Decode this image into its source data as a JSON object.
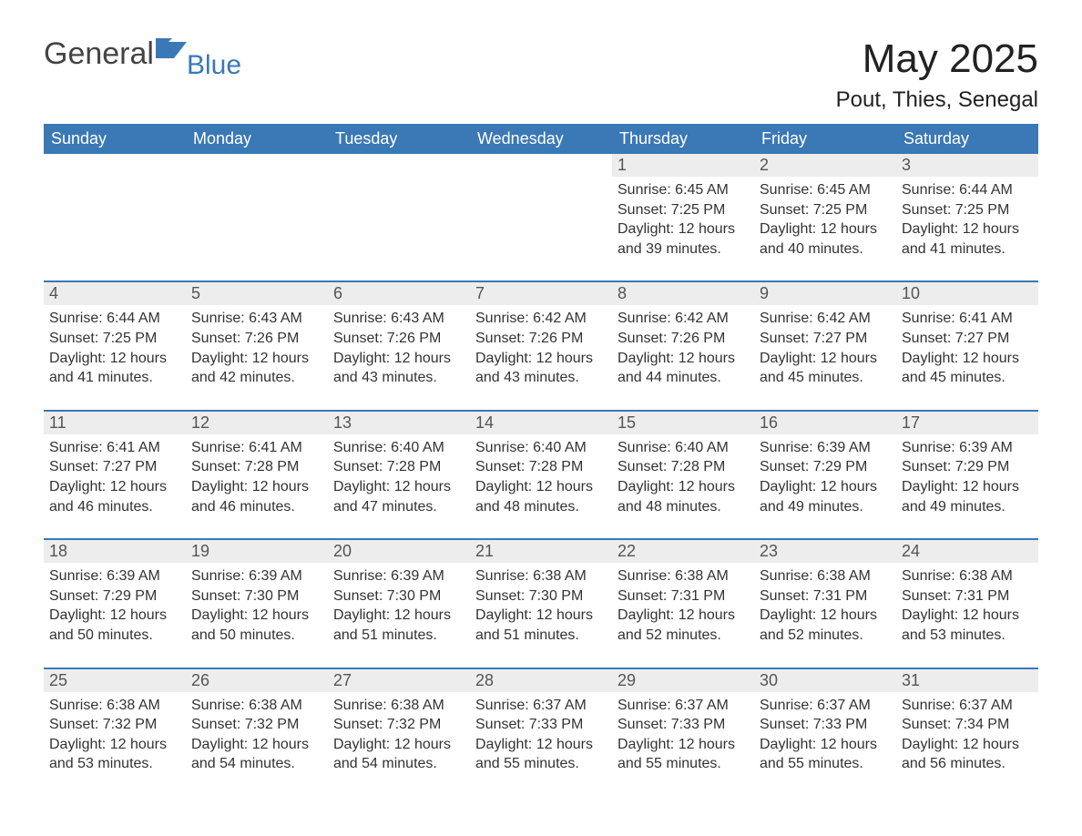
{
  "brand": {
    "general": "General",
    "blue": "Blue",
    "flag_color": "#3a78b6"
  },
  "header": {
    "title": "May 2025",
    "location": "Pout, Thies, Senegal"
  },
  "style": {
    "header_bg": "#3a78b6",
    "header_text": "#ffffff",
    "daynum_bg": "#ededed",
    "daynum_border": "#3a78b6",
    "text_color": "#333333",
    "page_bg": "#ffffff",
    "title_fontsize": 44,
    "location_fontsize": 24,
    "weekday_fontsize": 18,
    "cell_fontsize": 16
  },
  "weekdays": [
    "Sunday",
    "Monday",
    "Tuesday",
    "Wednesday",
    "Thursday",
    "Friday",
    "Saturday"
  ],
  "weeks": [
    [
      null,
      null,
      null,
      null,
      {
        "d": "1",
        "sr": "Sunrise: 6:45 AM",
        "ss": "Sunset: 7:25 PM",
        "dl": "Daylight: 12 hours and 39 minutes."
      },
      {
        "d": "2",
        "sr": "Sunrise: 6:45 AM",
        "ss": "Sunset: 7:25 PM",
        "dl": "Daylight: 12 hours and 40 minutes."
      },
      {
        "d": "3",
        "sr": "Sunrise: 6:44 AM",
        "ss": "Sunset: 7:25 PM",
        "dl": "Daylight: 12 hours and 41 minutes."
      }
    ],
    [
      {
        "d": "4",
        "sr": "Sunrise: 6:44 AM",
        "ss": "Sunset: 7:25 PM",
        "dl": "Daylight: 12 hours and 41 minutes."
      },
      {
        "d": "5",
        "sr": "Sunrise: 6:43 AM",
        "ss": "Sunset: 7:26 PM",
        "dl": "Daylight: 12 hours and 42 minutes."
      },
      {
        "d": "6",
        "sr": "Sunrise: 6:43 AM",
        "ss": "Sunset: 7:26 PM",
        "dl": "Daylight: 12 hours and 43 minutes."
      },
      {
        "d": "7",
        "sr": "Sunrise: 6:42 AM",
        "ss": "Sunset: 7:26 PM",
        "dl": "Daylight: 12 hours and 43 minutes."
      },
      {
        "d": "8",
        "sr": "Sunrise: 6:42 AM",
        "ss": "Sunset: 7:26 PM",
        "dl": "Daylight: 12 hours and 44 minutes."
      },
      {
        "d": "9",
        "sr": "Sunrise: 6:42 AM",
        "ss": "Sunset: 7:27 PM",
        "dl": "Daylight: 12 hours and 45 minutes."
      },
      {
        "d": "10",
        "sr": "Sunrise: 6:41 AM",
        "ss": "Sunset: 7:27 PM",
        "dl": "Daylight: 12 hours and 45 minutes."
      }
    ],
    [
      {
        "d": "11",
        "sr": "Sunrise: 6:41 AM",
        "ss": "Sunset: 7:27 PM",
        "dl": "Daylight: 12 hours and 46 minutes."
      },
      {
        "d": "12",
        "sr": "Sunrise: 6:41 AM",
        "ss": "Sunset: 7:28 PM",
        "dl": "Daylight: 12 hours and 46 minutes."
      },
      {
        "d": "13",
        "sr": "Sunrise: 6:40 AM",
        "ss": "Sunset: 7:28 PM",
        "dl": "Daylight: 12 hours and 47 minutes."
      },
      {
        "d": "14",
        "sr": "Sunrise: 6:40 AM",
        "ss": "Sunset: 7:28 PM",
        "dl": "Daylight: 12 hours and 48 minutes."
      },
      {
        "d": "15",
        "sr": "Sunrise: 6:40 AM",
        "ss": "Sunset: 7:28 PM",
        "dl": "Daylight: 12 hours and 48 minutes."
      },
      {
        "d": "16",
        "sr": "Sunrise: 6:39 AM",
        "ss": "Sunset: 7:29 PM",
        "dl": "Daylight: 12 hours and 49 minutes."
      },
      {
        "d": "17",
        "sr": "Sunrise: 6:39 AM",
        "ss": "Sunset: 7:29 PM",
        "dl": "Daylight: 12 hours and 49 minutes."
      }
    ],
    [
      {
        "d": "18",
        "sr": "Sunrise: 6:39 AM",
        "ss": "Sunset: 7:29 PM",
        "dl": "Daylight: 12 hours and 50 minutes."
      },
      {
        "d": "19",
        "sr": "Sunrise: 6:39 AM",
        "ss": "Sunset: 7:30 PM",
        "dl": "Daylight: 12 hours and 50 minutes."
      },
      {
        "d": "20",
        "sr": "Sunrise: 6:39 AM",
        "ss": "Sunset: 7:30 PM",
        "dl": "Daylight: 12 hours and 51 minutes."
      },
      {
        "d": "21",
        "sr": "Sunrise: 6:38 AM",
        "ss": "Sunset: 7:30 PM",
        "dl": "Daylight: 12 hours and 51 minutes."
      },
      {
        "d": "22",
        "sr": "Sunrise: 6:38 AM",
        "ss": "Sunset: 7:31 PM",
        "dl": "Daylight: 12 hours and 52 minutes."
      },
      {
        "d": "23",
        "sr": "Sunrise: 6:38 AM",
        "ss": "Sunset: 7:31 PM",
        "dl": "Daylight: 12 hours and 52 minutes."
      },
      {
        "d": "24",
        "sr": "Sunrise: 6:38 AM",
        "ss": "Sunset: 7:31 PM",
        "dl": "Daylight: 12 hours and 53 minutes."
      }
    ],
    [
      {
        "d": "25",
        "sr": "Sunrise: 6:38 AM",
        "ss": "Sunset: 7:32 PM",
        "dl": "Daylight: 12 hours and 53 minutes."
      },
      {
        "d": "26",
        "sr": "Sunrise: 6:38 AM",
        "ss": "Sunset: 7:32 PM",
        "dl": "Daylight: 12 hours and 54 minutes."
      },
      {
        "d": "27",
        "sr": "Sunrise: 6:38 AM",
        "ss": "Sunset: 7:32 PM",
        "dl": "Daylight: 12 hours and 54 minutes."
      },
      {
        "d": "28",
        "sr": "Sunrise: 6:37 AM",
        "ss": "Sunset: 7:33 PM",
        "dl": "Daylight: 12 hours and 55 minutes."
      },
      {
        "d": "29",
        "sr": "Sunrise: 6:37 AM",
        "ss": "Sunset: 7:33 PM",
        "dl": "Daylight: 12 hours and 55 minutes."
      },
      {
        "d": "30",
        "sr": "Sunrise: 6:37 AM",
        "ss": "Sunset: 7:33 PM",
        "dl": "Daylight: 12 hours and 55 minutes."
      },
      {
        "d": "31",
        "sr": "Sunrise: 6:37 AM",
        "ss": "Sunset: 7:34 PM",
        "dl": "Daylight: 12 hours and 56 minutes."
      }
    ]
  ]
}
